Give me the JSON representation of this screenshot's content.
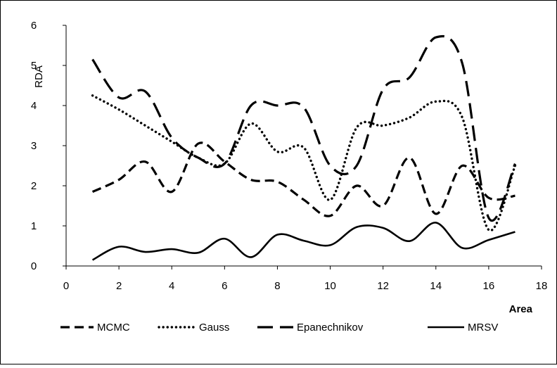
{
  "chart_data": {
    "type": "line",
    "title": "",
    "xlabel": "Area",
    "ylabel": "RDA",
    "xlim": [
      0,
      18
    ],
    "ylim": [
      0,
      6
    ],
    "xticks": [
      0,
      2,
      4,
      6,
      8,
      10,
      12,
      14,
      16,
      18
    ],
    "yticks": [
      0,
      1,
      2,
      3,
      4,
      5,
      6
    ],
    "grid": false,
    "legend": "bottom",
    "x": [
      1,
      2,
      3,
      4,
      5,
      6,
      7,
      8,
      9,
      10,
      11,
      12,
      13,
      14,
      15,
      16,
      17
    ],
    "series": [
      {
        "name": "MCMC",
        "style": "dashed",
        "values": [
          1.85,
          2.15,
          2.6,
          1.85,
          3.05,
          2.6,
          2.15,
          2.1,
          1.65,
          1.25,
          2.0,
          1.5,
          2.7,
          1.3,
          2.5,
          1.7,
          1.75
        ]
      },
      {
        "name": "Gauss",
        "style": "dotted",
        "values": [
          4.25,
          3.9,
          3.5,
          3.1,
          2.7,
          2.55,
          3.55,
          2.85,
          2.95,
          1.65,
          3.45,
          3.5,
          3.7,
          4.1,
          3.7,
          0.9,
          2.5
        ]
      },
      {
        "name": "Epanechnikov",
        "style": "longdash",
        "values": [
          5.15,
          4.2,
          4.35,
          3.2,
          2.7,
          2.55,
          4.0,
          4.0,
          3.95,
          2.5,
          2.5,
          4.4,
          4.7,
          5.7,
          5.05,
          1.2,
          2.55
        ]
      },
      {
        "name": "MRSV",
        "style": "solid",
        "values": [
          0.15,
          0.48,
          0.35,
          0.42,
          0.33,
          0.68,
          0.22,
          0.78,
          0.63,
          0.52,
          0.97,
          0.95,
          0.62,
          1.08,
          0.45,
          0.65,
          0.85
        ]
      }
    ]
  }
}
